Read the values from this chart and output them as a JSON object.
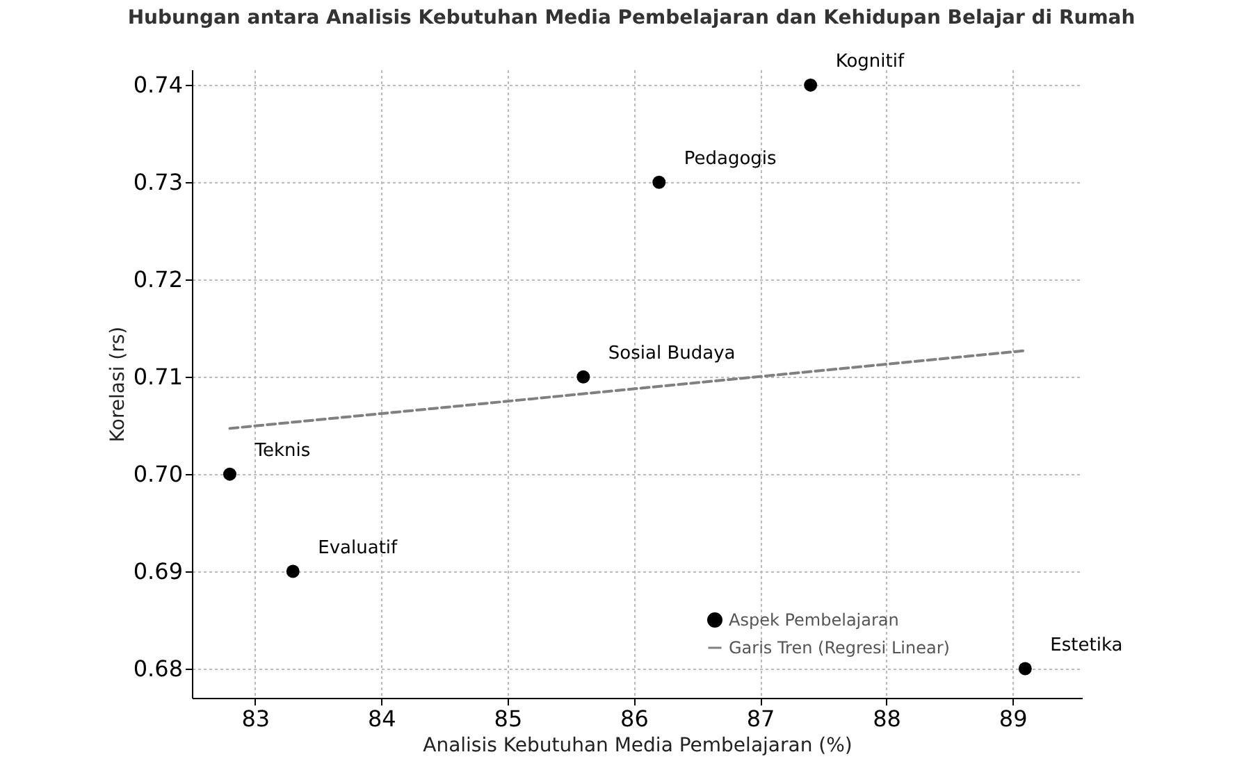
{
  "chart_data": {
    "type": "scatter",
    "title": "Hubungan antara Analisis Kebutuhan Media Pembelajaran dan Kehidupan Belajar di Rumah",
    "xlabel": "Analisis Kebutuhan Media Pembelajaran (%)",
    "ylabel": "Korelasi (rs)",
    "series": [
      {
        "name": "Aspek Pembelajaran",
        "color": "#000000",
        "marker": "circle",
        "x": [
          82.8,
          83.3,
          85.6,
          86.2,
          87.4,
          89.1
        ],
        "values": [
          0.7,
          0.69,
          0.71,
          0.73,
          0.74,
          0.68
        ]
      },
      {
        "name": "Garis Tren (Regresi Linear)",
        "type": "line",
        "color": "#808080",
        "line_style": "dashed",
        "x": [
          82.8,
          89.1
        ],
        "values": [
          0.7047,
          0.7127
        ]
      }
    ],
    "annotations": [
      {
        "text": "Teknis",
        "x": 82.8,
        "y": 0.7
      },
      {
        "text": "Evaluatif",
        "x": 83.3,
        "y": 0.69
      },
      {
        "text": "Sosial Budaya",
        "x": 85.6,
        "y": 0.71
      },
      {
        "text": "Pedagogis",
        "x": 86.2,
        "y": 0.73
      },
      {
        "text": "Kognitif",
        "x": 87.4,
        "y": 0.74
      },
      {
        "text": "Estetika",
        "x": 89.1,
        "y": 0.68
      }
    ],
    "xlim": [
      82.5,
      89.55
    ],
    "ylim": [
      0.677,
      0.7416
    ],
    "xticks": [
      83,
      84,
      85,
      86,
      87,
      88,
      89
    ],
    "yticks": [
      {
        "value": 0.68,
        "label": "0.68"
      },
      {
        "value": 0.69,
        "label": "0.69"
      },
      {
        "value": 0.7,
        "label": "0.70"
      },
      {
        "value": 0.71,
        "label": "0.71"
      },
      {
        "value": 0.72,
        "label": "0.72"
      },
      {
        "value": 0.73,
        "label": "0.73"
      },
      {
        "value": 0.74,
        "label": "0.74"
      }
    ],
    "grid": true,
    "legend": "bottom right"
  }
}
